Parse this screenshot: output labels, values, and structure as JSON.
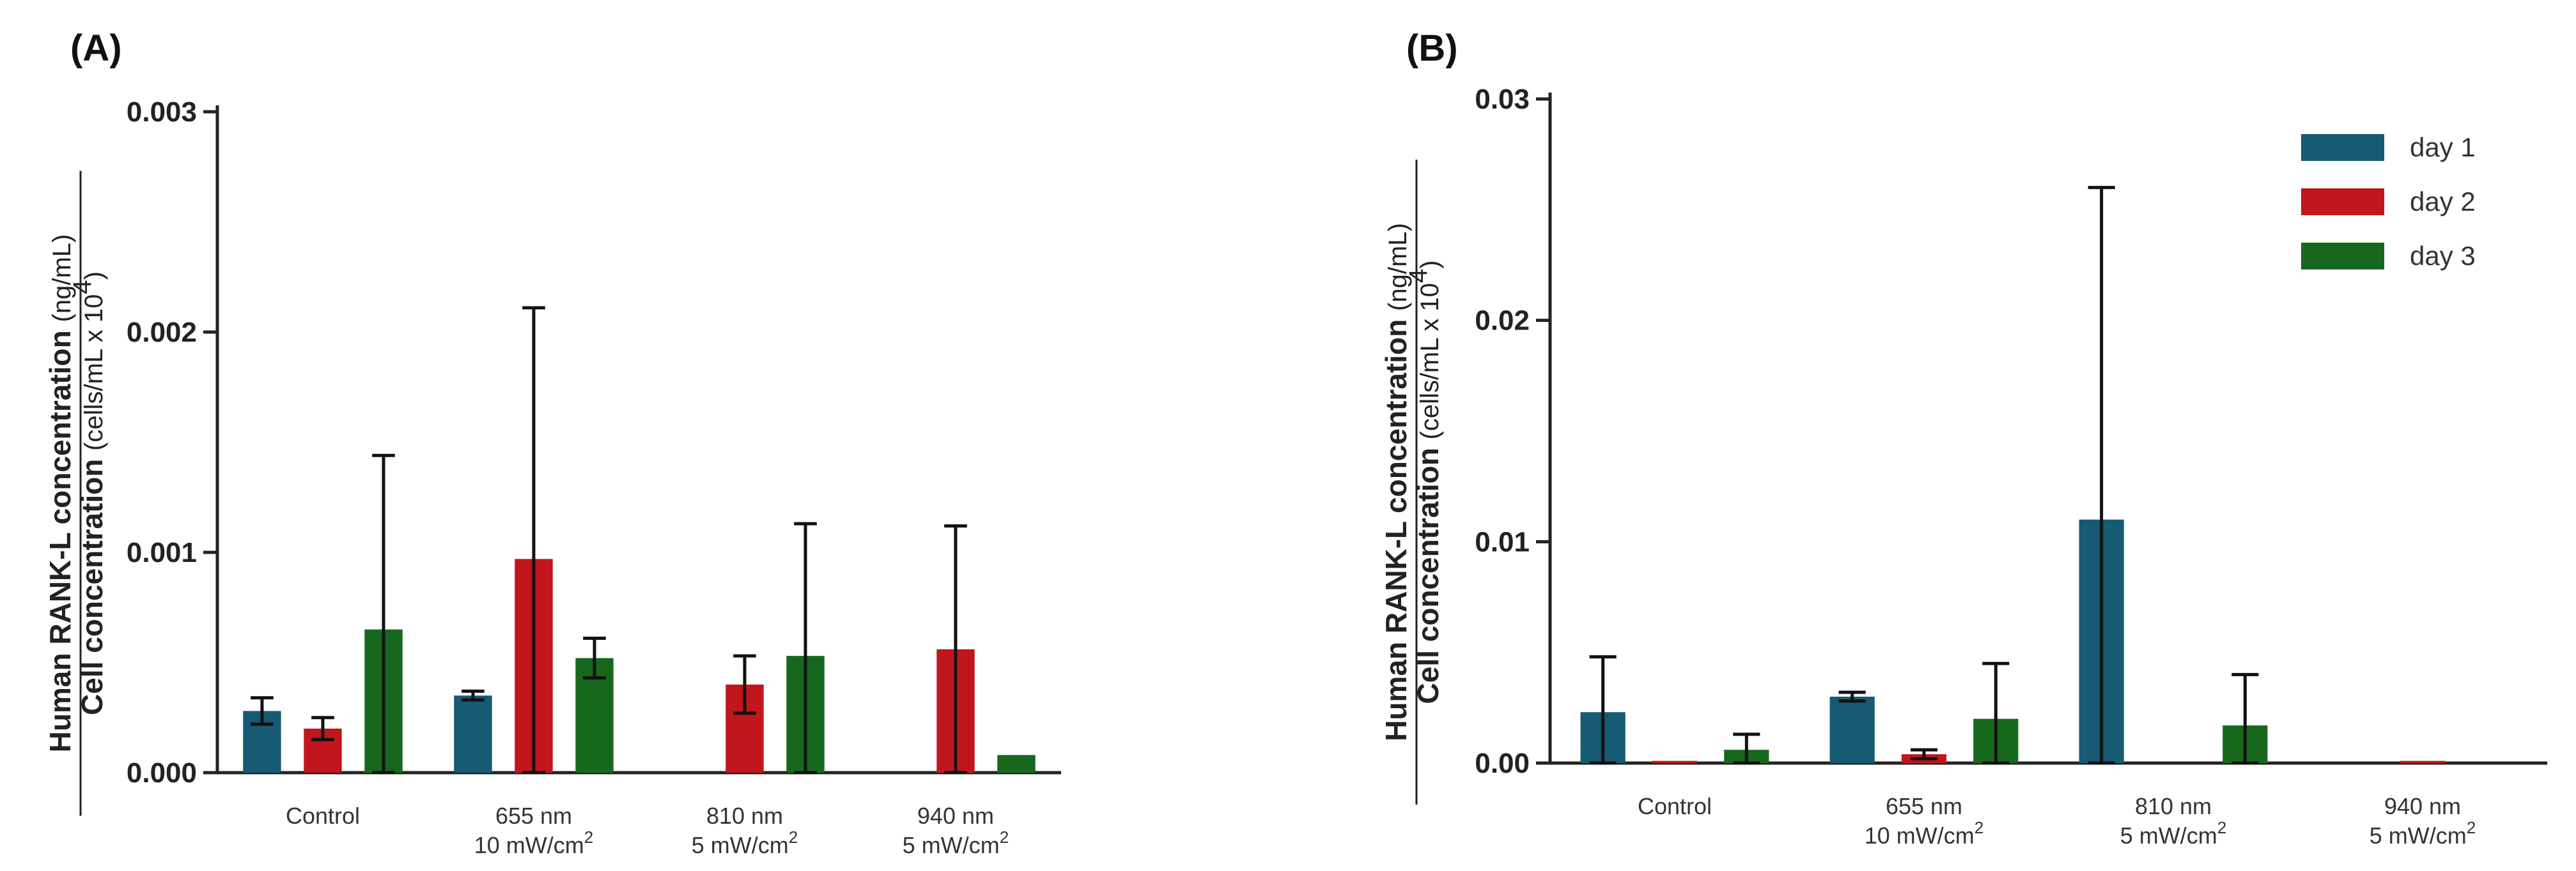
{
  "colors": {
    "day1": "#175a73",
    "day2": "#c0161c",
    "day3": "#17681d",
    "axis": "#222222"
  },
  "chart_data": [
    {
      "type": "bar",
      "panel": "(A)",
      "ylabel_top": {
        "bold": "Human RANK-L concentration",
        "unit": "(ng/mL)"
      },
      "ylabel_bottom": {
        "bold": "Cell concentration",
        "unit": "(cells/mL x 10",
        "sup": "4",
        "close": ")"
      },
      "ylim": [
        0,
        0.003
      ],
      "yticks": [
        "0.000",
        "0.001",
        "0.002",
        "0.003"
      ],
      "ytick_values": [
        0,
        0.001,
        0.002,
        0.003
      ],
      "categories": [
        {
          "line1": "Control",
          "line2": "",
          "sup": ""
        },
        {
          "line1": "655 nm",
          "line2": "10 mW/cm",
          "sup": "2"
        },
        {
          "line1": "810 nm",
          "line2": "5 mW/cm",
          "sup": "2"
        },
        {
          "line1": "940 nm",
          "line2": "5 mW/cm",
          "sup": "2"
        }
      ],
      "series": [
        {
          "name": "day 1",
          "color_key": "day1",
          "values": [
            0.00028,
            0.00035,
            null,
            null
          ],
          "errors": [
            6e-05,
            2e-05,
            null,
            null
          ]
        },
        {
          "name": "day 2",
          "color_key": "day2",
          "values": [
            0.0002,
            0.00097,
            0.0004,
            0.00056
          ],
          "errors": [
            5e-05,
            0.00114,
            0.00013,
            0.00056
          ]
        },
        {
          "name": "day 3",
          "color_key": "day3",
          "values": [
            0.00065,
            0.00052,
            0.00053,
            8e-05
          ],
          "errors": [
            0.00079,
            9e-05,
            0.0006,
            0
          ]
        }
      ],
      "legend": false
    },
    {
      "type": "bar",
      "panel": "(B)",
      "ylabel_top": {
        "bold": "Human RANK-L concentration",
        "unit": "(ng/mL)"
      },
      "ylabel_bottom": {
        "bold": "Cell concentration",
        "unit": "(cells/mL x 10",
        "sup": "4",
        "close": ")"
      },
      "ylim": [
        0,
        0.03
      ],
      "yticks": [
        "0.00",
        "0.01",
        "0.02",
        "0.03"
      ],
      "ytick_values": [
        0,
        0.01,
        0.02,
        0.03
      ],
      "categories": [
        {
          "line1": "Control",
          "line2": "",
          "sup": ""
        },
        {
          "line1": "655 nm",
          "line2": "10 mW/cm",
          "sup": "2"
        },
        {
          "line1": "810 nm",
          "line2": "5 mW/cm",
          "sup": "2"
        },
        {
          "line1": "940 nm",
          "line2": "5 mW/cm",
          "sup": "2"
        }
      ],
      "series": [
        {
          "name": "day 1",
          "color_key": "day1",
          "values": [
            0.0023,
            0.003,
            0.011,
            null
          ],
          "errors": [
            0.0025,
            0.0002,
            0.015,
            null
          ]
        },
        {
          "name": "day 2",
          "color_key": "day2",
          "values": [
            0.0001,
            0.0004,
            null,
            0.0001
          ],
          "errors": [
            0,
            0.0002,
            null,
            0
          ]
        },
        {
          "name": "day 3",
          "color_key": "day3",
          "values": [
            0.0006,
            0.002,
            0.0017,
            null
          ],
          "errors": [
            0.0007,
            0.0025,
            0.0023,
            null
          ]
        }
      ],
      "legend": true,
      "legend_position": "top-right"
    }
  ]
}
